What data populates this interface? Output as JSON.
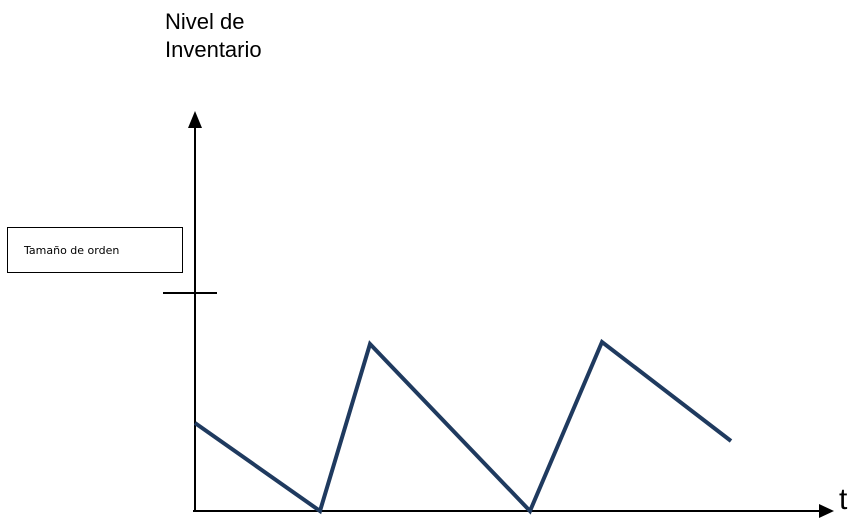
{
  "diagram": {
    "y_axis_title_line1": "Nivel de",
    "y_axis_title_line2": "Inventario",
    "x_axis_title": "t",
    "order_size_label": "Tamaño de orden",
    "colors": {
      "axes": "#000000",
      "inventory_line": "#1f3a5f"
    }
  }
}
